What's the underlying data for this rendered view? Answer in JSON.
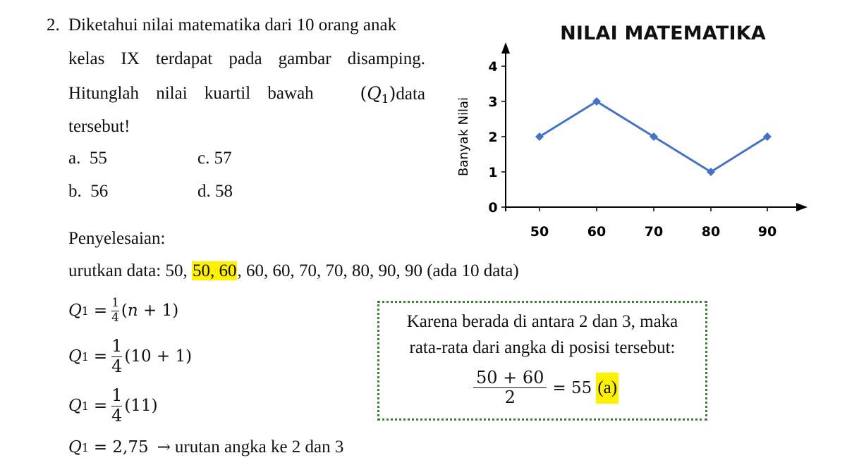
{
  "question": {
    "number": "2.",
    "line1": "Diketahui nilai matematika dari 10 orang anak",
    "line2": "kelas IX terdapat pada gambar disamping.",
    "line3_part1": "Hitunglah nilai kuartil bawah",
    "q_var": "Q",
    "q_sub": "1",
    "line3_part2": "data",
    "line4": "tersebut!",
    "options": [
      {
        "letter": "a.",
        "value": "55"
      },
      {
        "letter": "b.",
        "value": "56"
      },
      {
        "letter": "c.",
        "value": "57"
      },
      {
        "letter": "d.",
        "value": "58"
      }
    ]
  },
  "solution": {
    "heading": "Penyelesaian:",
    "sorted_prefix": "urutkan data: 50, ",
    "sorted_highlight": "50, 60",
    "sorted_suffix": ", 60, 60, 70, 70, 80, 90, 90 (ada 10 data)",
    "formula1": {
      "lhs": "Q",
      "sub": "1",
      "eq": "=",
      "num": "1",
      "den": "4",
      "rest_open": "(",
      "n": "n",
      "rest_close": " + 1)"
    },
    "formula2": {
      "lhs": "Q",
      "sub": "1",
      "eq": "=",
      "num": "1",
      "den": "4",
      "rest": "(10 + 1)"
    },
    "formula3": {
      "lhs": "Q",
      "sub": "1",
      "eq": "=",
      "num": "1",
      "den": "4",
      "rest": "(11)"
    },
    "formula4": {
      "lhs": "Q",
      "sub": "1",
      "eq": "= 2,75",
      "arrow": "→",
      "text": "urutan angka ke 2 dan 3"
    }
  },
  "note_box": {
    "line1": "Karena berada di antara 2 dan 3, maka",
    "line2": "rata-rata dari angka di posisi tersebut:",
    "num": "50 + 60",
    "den": "2",
    "result": "= 55",
    "answer": "(a)",
    "border_color": "#3f7d36",
    "highlight_color": "#fff200"
  },
  "chart_data": {
    "type": "line",
    "title": "NILAI MATEMATIKA",
    "ylabel": "Banyak Nilai",
    "xlabel": "",
    "x": [
      50,
      60,
      70,
      80,
      90
    ],
    "values": [
      2,
      3,
      2,
      1,
      2
    ],
    "ylim": [
      0,
      4
    ],
    "yticks": [
      0,
      1,
      2,
      3,
      4
    ],
    "line_color": "#4472c4",
    "marker": "diamond",
    "grid": false
  }
}
